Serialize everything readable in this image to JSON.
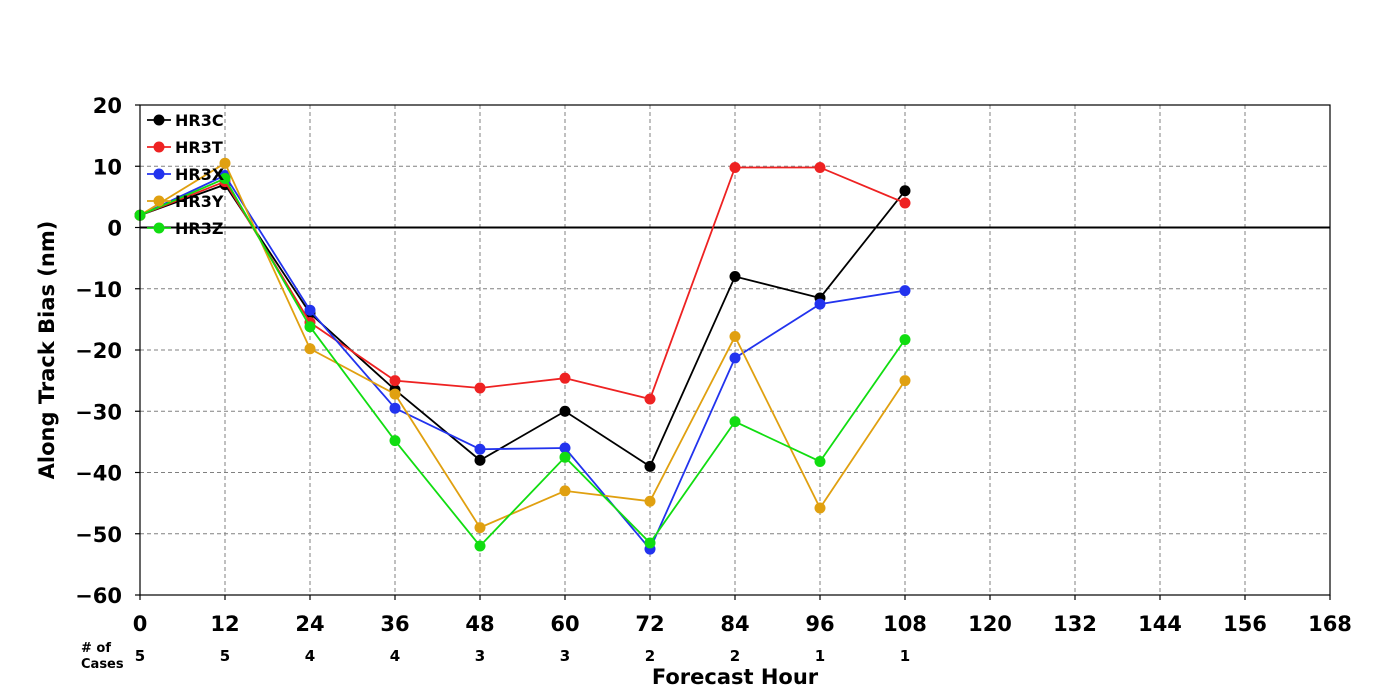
{
  "chart_data": {
    "type": "line",
    "title": "",
    "xlabel": "Forecast Hour",
    "ylabel": "Along Track Bias (nm)",
    "xlim": [
      0,
      168
    ],
    "ylim": [
      -60,
      20
    ],
    "x_ticks": [
      0,
      12,
      24,
      36,
      48,
      60,
      72,
      84,
      96,
      108,
      120,
      132,
      144,
      156,
      168
    ],
    "y_ticks": [
      20,
      10,
      0,
      -10,
      -20,
      -30,
      -40,
      -50,
      -60
    ],
    "y_tick_labels": [
      "20",
      "10",
      "0",
      "−10",
      "−20",
      "−30",
      "−40",
      "−50",
      "−60"
    ],
    "grid": true,
    "legend_position": "top-left",
    "cases_label": [
      "# of",
      "Cases"
    ],
    "cases": {
      "x": [
        0,
        12,
        24,
        36,
        48,
        60,
        72,
        84,
        96,
        108
      ],
      "values": [
        5,
        5,
        4,
        4,
        3,
        3,
        2,
        2,
        1,
        1
      ]
    },
    "x": [
      0,
      12,
      24,
      36,
      48,
      60,
      72,
      84,
      96,
      108
    ],
    "series": [
      {
        "name": "HR3C",
        "color": "#000000",
        "values": [
          2,
          7,
          -14,
          -26.5,
          -38,
          -30,
          -39,
          -8,
          -11.5,
          6
        ]
      },
      {
        "name": "HR3T",
        "color": "#ee2222",
        "values": [
          2,
          7.5,
          -15.5,
          -25,
          -26.2,
          -24.6,
          -28,
          9.8,
          9.8,
          4
        ]
      },
      {
        "name": "HR3X",
        "color": "#2233ee",
        "values": [
          2,
          8.5,
          -13.5,
          -29.5,
          -36.2,
          -36,
          -52.5,
          -21.3,
          -12.5,
          -10.3
        ]
      },
      {
        "name": "HR3Y",
        "color": "#e0a010",
        "values": [
          2,
          10.5,
          -19.8,
          -27.2,
          -49,
          -43,
          -44.7,
          -17.8,
          -45.8,
          -25
        ]
      },
      {
        "name": "HR3Z",
        "color": "#11dd11",
        "values": [
          2,
          8,
          -16.2,
          -34.8,
          -52,
          -37.5,
          -51.5,
          -31.7,
          -38.2,
          -18.3
        ]
      }
    ]
  }
}
